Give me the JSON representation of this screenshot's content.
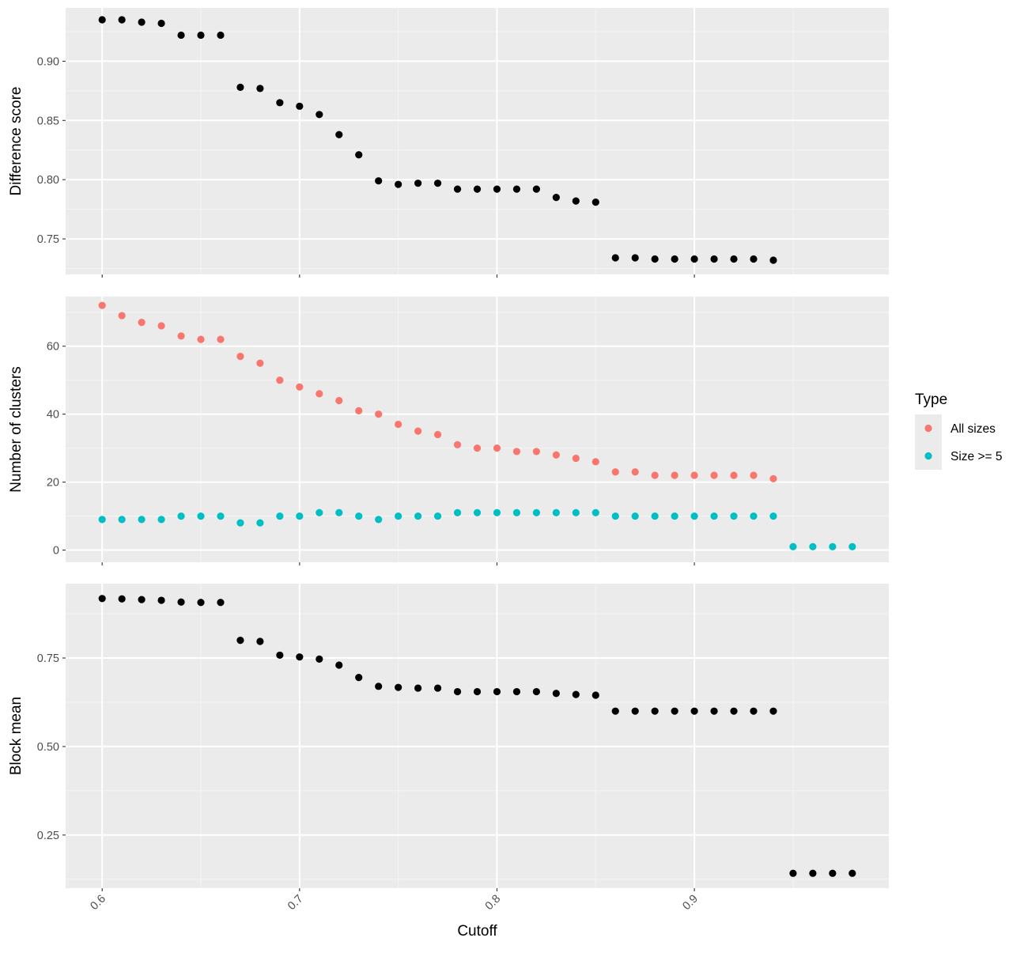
{
  "chart_data": [
    {
      "type": "scatter",
      "ylabel": "Difference score",
      "ylim": [
        0.72,
        0.945
      ],
      "yticks": [
        0.75,
        0.8,
        0.85,
        0.9
      ],
      "ytick_labels": [
        "0.75",
        "0.80",
        "0.85",
        "0.90"
      ],
      "xlim": [
        0.5815,
        0.9985
      ],
      "grid": true,
      "series": [
        {
          "color": "#000000",
          "x": [
            0.6,
            0.61,
            0.62,
            0.63,
            0.64,
            0.65,
            0.66,
            0.67,
            0.68,
            0.69,
            0.7,
            0.71,
            0.72,
            0.73,
            0.74,
            0.75,
            0.76,
            0.77,
            0.78,
            0.79,
            0.8,
            0.81,
            0.82,
            0.83,
            0.84,
            0.85,
            0.86,
            0.87,
            0.88,
            0.89,
            0.9,
            0.91,
            0.92,
            0.93,
            0.94
          ],
          "y": [
            0.935,
            0.935,
            0.933,
            0.932,
            0.922,
            0.922,
            0.922,
            0.878,
            0.877,
            0.865,
            0.862,
            0.855,
            0.838,
            0.821,
            0.799,
            0.796,
            0.797,
            0.797,
            0.792,
            0.792,
            0.792,
            0.792,
            0.792,
            0.785,
            0.782,
            0.781,
            0.734,
            0.734,
            0.733,
            0.733,
            0.733,
            0.733,
            0.733,
            0.733,
            0.732
          ]
        }
      ]
    },
    {
      "type": "scatter",
      "ylabel": "Number of clusters",
      "ylim": [
        -3.6,
        74.6
      ],
      "yticks": [
        0,
        20,
        40,
        60
      ],
      "ytick_labels": [
        "0",
        "20",
        "40",
        "60"
      ],
      "xlim": [
        0.5815,
        0.9985
      ],
      "grid": true,
      "series": [
        {
          "name": "All sizes",
          "color": "#F8766D",
          "x": [
            0.6,
            0.61,
            0.62,
            0.63,
            0.64,
            0.65,
            0.66,
            0.67,
            0.68,
            0.69,
            0.7,
            0.71,
            0.72,
            0.73,
            0.74,
            0.75,
            0.76,
            0.77,
            0.78,
            0.79,
            0.8,
            0.81,
            0.82,
            0.83,
            0.84,
            0.85,
            0.86,
            0.87,
            0.88,
            0.89,
            0.9,
            0.91,
            0.92,
            0.93,
            0.94
          ],
          "y": [
            72,
            69,
            67,
            66,
            63,
            62,
            62,
            57,
            55,
            50,
            48,
            46,
            44,
            41,
            40,
            37,
            35,
            34,
            31,
            30,
            30,
            29,
            29,
            28,
            27,
            26,
            23,
            23,
            22,
            22,
            22,
            22,
            22,
            22,
            21
          ]
        },
        {
          "name": "Size >= 5",
          "color": "#00BFC4",
          "x": [
            0.6,
            0.61,
            0.62,
            0.63,
            0.64,
            0.65,
            0.66,
            0.67,
            0.68,
            0.69,
            0.7,
            0.71,
            0.72,
            0.73,
            0.74,
            0.75,
            0.76,
            0.77,
            0.78,
            0.79,
            0.8,
            0.81,
            0.82,
            0.83,
            0.84,
            0.85,
            0.86,
            0.87,
            0.88,
            0.89,
            0.9,
            0.91,
            0.92,
            0.93,
            0.94,
            0.95,
            0.96,
            0.97,
            0.98
          ],
          "y": [
            9,
            9,
            9,
            9,
            10,
            10,
            10,
            8,
            8,
            10,
            10,
            11,
            11,
            10,
            9,
            10,
            10,
            10,
            11,
            11,
            11,
            11,
            11,
            11,
            11,
            11,
            10,
            10,
            10,
            10,
            10,
            10,
            10,
            10,
            10,
            1,
            1,
            1,
            1
          ]
        }
      ]
    },
    {
      "type": "scatter",
      "ylabel": "Block mean",
      "ylim": [
        0.1,
        0.96
      ],
      "yticks": [
        0.25,
        0.5,
        0.75
      ],
      "ytick_labels": [
        "0.25",
        "0.50",
        "0.75"
      ],
      "xlabel": "Cutoff",
      "xlim": [
        0.5815,
        0.9985
      ],
      "xticks": [
        0.6,
        0.7,
        0.8,
        0.9
      ],
      "xtick_labels": [
        "0.6",
        "0.7",
        "0.8",
        "0.9"
      ],
      "grid": true,
      "series": [
        {
          "color": "#000000",
          "x": [
            0.6,
            0.61,
            0.62,
            0.63,
            0.64,
            0.65,
            0.66,
            0.67,
            0.68,
            0.69,
            0.7,
            0.71,
            0.72,
            0.73,
            0.74,
            0.75,
            0.76,
            0.77,
            0.78,
            0.79,
            0.8,
            0.81,
            0.82,
            0.83,
            0.84,
            0.85,
            0.86,
            0.87,
            0.88,
            0.89,
            0.9,
            0.91,
            0.92,
            0.93,
            0.94,
            0.95,
            0.96,
            0.97,
            0.98
          ],
          "y": [
            0.918,
            0.917,
            0.915,
            0.913,
            0.908,
            0.907,
            0.907,
            0.8,
            0.797,
            0.758,
            0.753,
            0.747,
            0.73,
            0.695,
            0.67,
            0.667,
            0.665,
            0.665,
            0.655,
            0.655,
            0.655,
            0.655,
            0.655,
            0.65,
            0.647,
            0.645,
            0.6,
            0.6,
            0.6,
            0.6,
            0.6,
            0.6,
            0.6,
            0.6,
            0.6,
            0.142,
            0.142,
            0.142,
            0.142
          ]
        }
      ]
    }
  ],
  "legend": {
    "title": "Type",
    "placement": "right",
    "items": [
      {
        "label": "All sizes",
        "color": "#F8766D"
      },
      {
        "label": "Size >= 5",
        "color": "#00BFC4"
      }
    ]
  },
  "theme": {
    "panel_background": "#EBEBEB",
    "grid_color": "#FFFFFF"
  }
}
